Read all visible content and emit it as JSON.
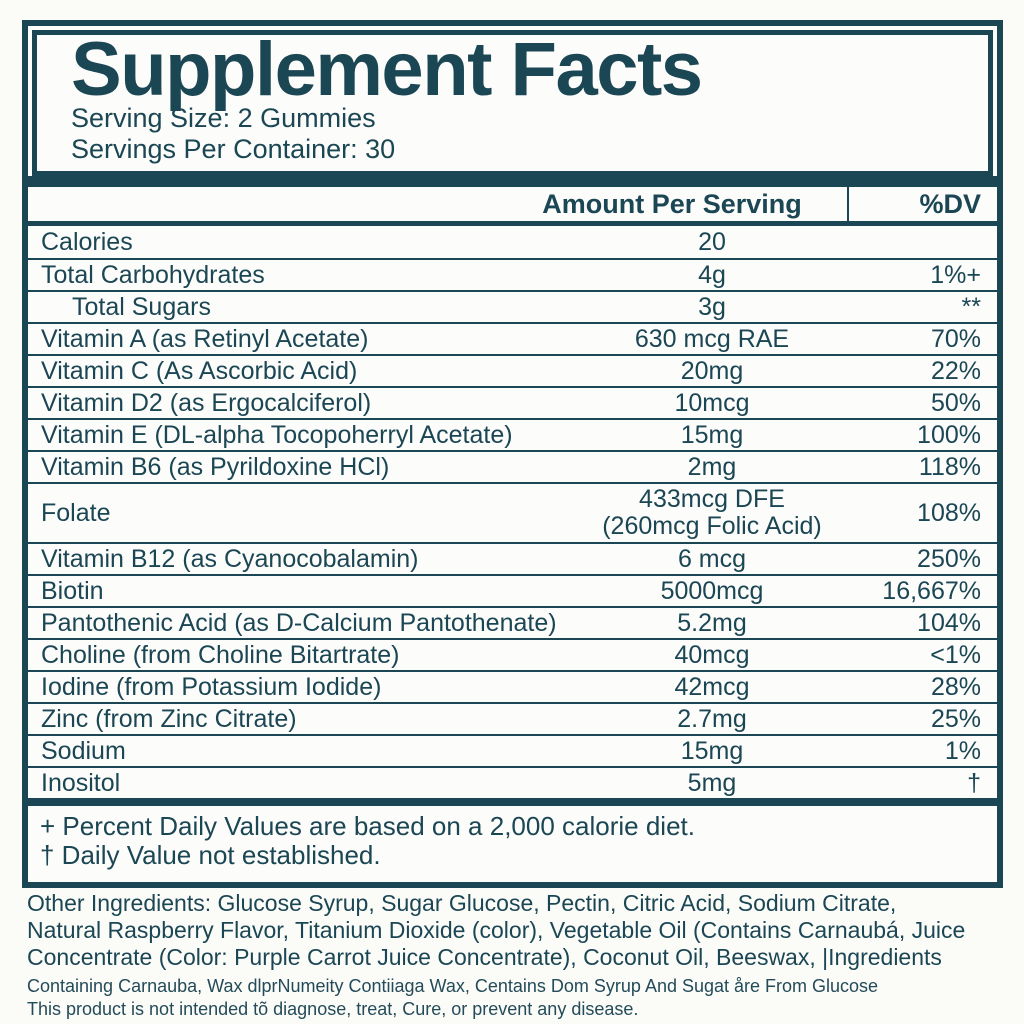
{
  "label": {
    "title": "Supplement Facts",
    "serving_size": "Serving Size: 2 Gummies",
    "servings_per_container": "Servings Per Container: 30",
    "columns": {
      "amount": "Amount Per Serving",
      "dv": "%DV"
    },
    "rows": [
      {
        "name": "Calories",
        "amount": "20",
        "dv": ""
      },
      {
        "name": "Total Carbohydrates",
        "amount": "4g",
        "dv": "1%+"
      },
      {
        "name": "Total Sugars",
        "amount": "3g",
        "dv": "**",
        "indent": true
      },
      {
        "name": "Vitamin A (as Retinyl Acetate)",
        "amount": "630 mcg RAE",
        "dv": "70%"
      },
      {
        "name": "Vitamin C (As Ascorbic Acid)",
        "amount": "20mg",
        "dv": "22%"
      },
      {
        "name": "Vitamin D2 (as Ergocalciferol)",
        "amount": "10mcg",
        "dv": "50%"
      },
      {
        "name": "Vitamin E (DL-alpha Tocopoherryl Acetate)",
        "amount": "15mg",
        "dv": "100%"
      },
      {
        "name": "Vitamin B6 (as Pyrildoxine HCl)",
        "amount": "2mg",
        "dv": "118%"
      },
      {
        "name": "Folate",
        "amount": "433mcg DFE",
        "amount2": "(260mcg Folic Acid)",
        "dv": "108%"
      },
      {
        "name": "Vitamin B12 (as Cyanocobalamin)",
        "amount": "6 mcg",
        "dv": "250%"
      },
      {
        "name": "Biotin",
        "amount": "5000mcg",
        "dv": "16,667%"
      },
      {
        "name": "Pantothenic Acid (as D-Calcium Pantothenate)",
        "amount": "5.2mg",
        "dv": "104%"
      },
      {
        "name": "Choline (from Choline Bitartrate)",
        "amount": "40mcg",
        "dv": "<1%"
      },
      {
        "name": "Iodine (from Potassium Iodide)",
        "amount": "42mcg",
        "dv": "28%"
      },
      {
        "name": "Zinc (from Zinc Citrate)",
        "amount": "2.7mg",
        "dv": "25%"
      },
      {
        "name": "Sodium",
        "amount": "15mg",
        "dv": "1%"
      },
      {
        "name": "Inositol",
        "amount": "5mg",
        "dv": "†"
      }
    ],
    "footnotes": [
      "+ Percent Daily Values are based on a 2,000 calorie diet.",
      "† Daily Value not established."
    ],
    "other_ingredients": [
      "Other Ingredients: Glucose Syrup, Sugar Glucose, Pectin, Citric Acid, Sodium Citrate,",
      "Natural Raspberry Flavor, Titanium Dioxide (color),  Vegetable Oil (Contains Carnaubá, Juice",
      "Concentrate (Color: Purple Carrot Juice Concentrate), Coconut Oil, Beeswax, |Ingredients"
    ],
    "fine_print": [
      "Containing Carnauba, Wax dlprNumeity Contiiaga Wax, Centains Dom Syrup And Sugat åre From Glucose",
      "This product is not intended tõ diagnose, treat, Cure, or prevent any disease."
    ],
    "colors": {
      "ink": "#1b4654",
      "paper": "#fbfbf8"
    }
  }
}
